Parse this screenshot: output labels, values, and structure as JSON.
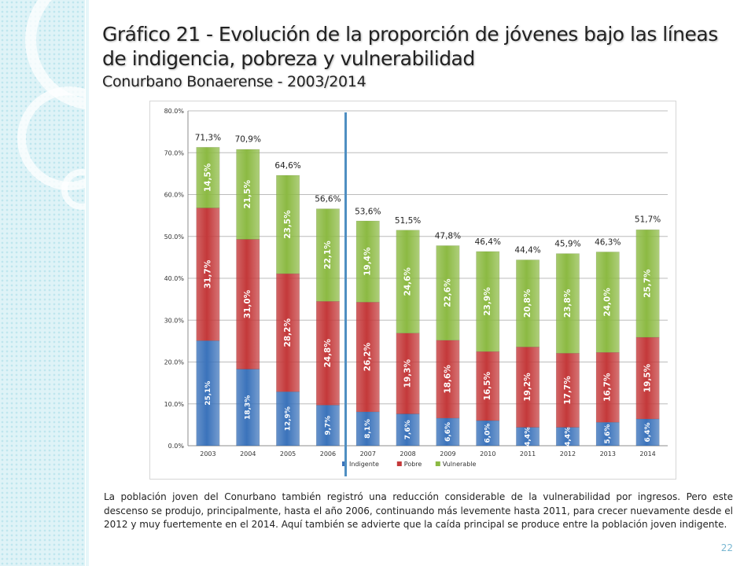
{
  "slide": {
    "title": "Gráfico 21 - Evolución de la proporción de jóvenes bajo las líneas de indigencia, pobreza y vulnerabilidad",
    "subtitle": "Conurbano Bonaerense  - 2003/2014",
    "paragraph": "La población joven del Conurbano también registró una reducción considerable de la vulnerabilidad por ingresos. Pero este descenso se produjo, principalmente, hasta el año 2006, continuando más levemente hasta 2011, para crecer nuevamente desde el 2012 y muy fuertemente en el 2014. Aquí también se advierte que la caída principal se produce entre la población joven indigente.",
    "page_number": "22"
  },
  "colors": {
    "indigente": "#3b73bb",
    "pobre": "#c4393a",
    "vulnerable": "#8cba43",
    "marker": "#4f8fc2"
  },
  "chart_data": {
    "type": "bar",
    "stacked": true,
    "categories": [
      "2003",
      "2004",
      "2005",
      "2006",
      "2007",
      "2008",
      "2009",
      "2010",
      "2011",
      "2012",
      "2013",
      "2014"
    ],
    "series": [
      {
        "name": "Indigente",
        "values": [
          25.1,
          18.3,
          12.9,
          9.7,
          8.1,
          7.6,
          6.6,
          6.0,
          4.4,
          4.4,
          5.6,
          6.4
        ],
        "labels": [
          "25,1%",
          "18,3%",
          "12,9%",
          "9,7%",
          "8,1%",
          "7,6%",
          "6,6%",
          "6,0%",
          "4,4%",
          "4,4%",
          "5,6%",
          "6,4%"
        ]
      },
      {
        "name": "Pobre",
        "values": [
          31.7,
          31.0,
          28.2,
          24.8,
          26.2,
          19.3,
          18.6,
          16.5,
          19.2,
          17.7,
          16.7,
          19.5
        ],
        "labels": [
          "31,7%",
          "31,0%",
          "28,2%",
          "24,8%",
          "26,2%",
          "19,3%",
          "18,6%",
          "16,5%",
          "19,2%",
          "17,7%",
          "16,7%",
          "19,5%"
        ]
      },
      {
        "name": "Vulnerable",
        "values": [
          14.5,
          21.5,
          23.5,
          22.1,
          19.4,
          24.6,
          22.6,
          23.9,
          20.8,
          23.8,
          24.0,
          25.7
        ],
        "labels": [
          "14,5%",
          "21,5%",
          "23,5%",
          "22,1%",
          "19,4%",
          "24,6%",
          "22,6%",
          "23,9%",
          "20,8%",
          "23,8%",
          "24,0%",
          "25,7%"
        ]
      }
    ],
    "totals": [
      71.3,
      70.9,
      64.6,
      56.6,
      53.6,
      51.5,
      47.8,
      46.4,
      44.4,
      45.9,
      46.3,
      51.7
    ],
    "total_labels": [
      "71,3%",
      "70,9%",
      "64,6%",
      "56,6%",
      "53,6%",
      "51,5%",
      "47,8%",
      "46,4%",
      "44,4%",
      "45,9%",
      "46,3%",
      "51,7%"
    ],
    "y_ticks": [
      "0.0%",
      "10.0%",
      "20.0%",
      "30.0%",
      "40.0%",
      "50.0%",
      "60.0%",
      "70.0%",
      "80.0%"
    ],
    "ylim": [
      0,
      80
    ],
    "grid": true,
    "legend_position": "bottom"
  }
}
